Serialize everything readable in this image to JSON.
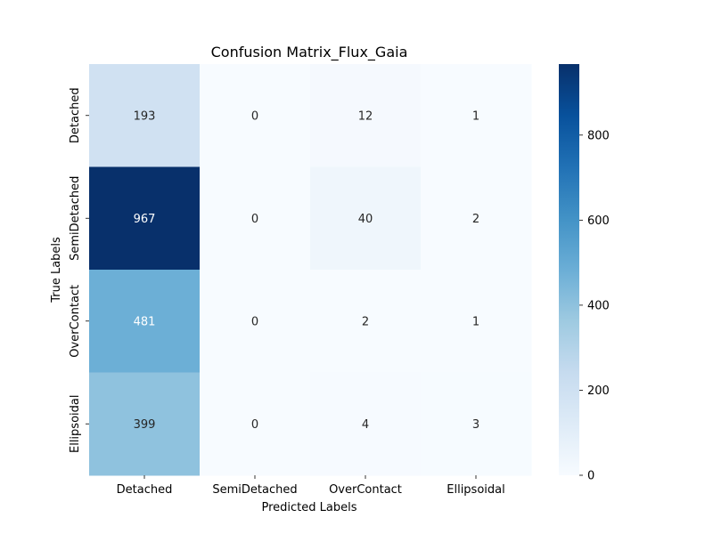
{
  "chart_data": {
    "type": "heatmap",
    "title": "Confusion Matrix_Flux_Gaia",
    "xlabel": "Predicted Labels",
    "ylabel": "True Labels",
    "x_categories": [
      "Detached",
      "SemiDetached",
      "OverContact",
      "Ellipsoidal"
    ],
    "y_categories": [
      "Detached",
      "SemiDetached",
      "OverContact",
      "Ellipsoidal"
    ],
    "values": [
      [
        193,
        0,
        12,
        1
      ],
      [
        967,
        0,
        40,
        2
      ],
      [
        481,
        0,
        2,
        1
      ],
      [
        399,
        0,
        4,
        3
      ]
    ],
    "colorbar": {
      "range": [
        0,
        967
      ],
      "ticks": [
        0,
        200,
        400,
        600,
        800
      ],
      "colormap": "Blues"
    },
    "annotation_text_colors": {
      "light_cell": "#262626",
      "dark_cell": "#ffffff"
    }
  }
}
